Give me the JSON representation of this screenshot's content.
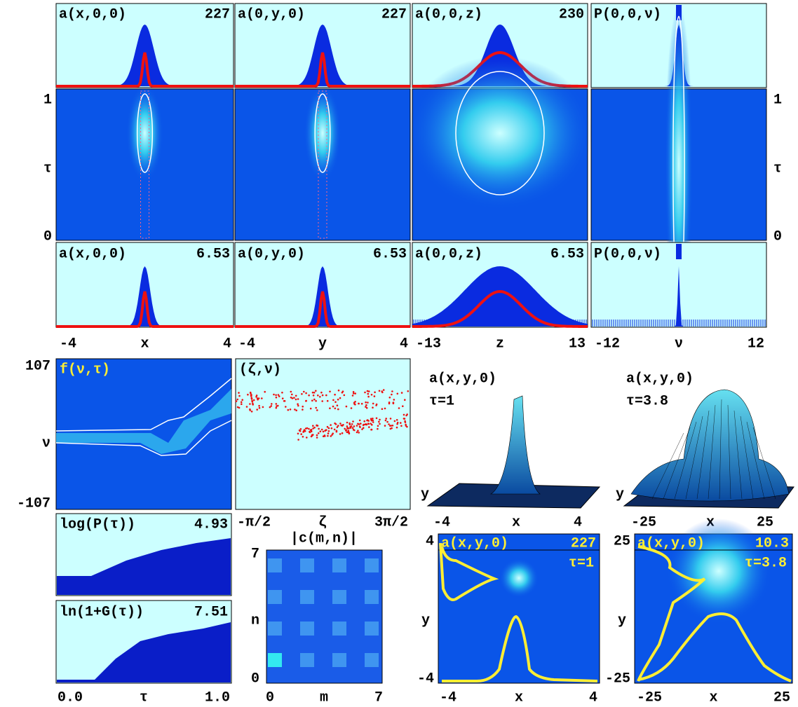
{
  "top_row": [
    {
      "title": "a(x,0,0)",
      "value": "227"
    },
    {
      "title": "a(0,y,0)",
      "value": "227"
    },
    {
      "title": "a(0,0,z)",
      "value": "230"
    },
    {
      "title": "P(0,0,ν)"
    }
  ],
  "heatmap_axis": {
    "top": "1",
    "label": "τ",
    "bottom": "0"
  },
  "bottom_row": [
    {
      "title": "a(x,0,0)",
      "value": "6.53"
    },
    {
      "title": "a(0,y,0)",
      "value": "6.53"
    },
    {
      "title": "a(0,0,z)",
      "value": "6.53"
    },
    {
      "title": "P(0,0,ν)"
    }
  ],
  "x_axes": [
    {
      "min": "-4",
      "label": "x",
      "max": "4"
    },
    {
      "min": "-4",
      "label": "y",
      "max": "4"
    },
    {
      "min": "-13",
      "label": "z",
      "max": "13"
    },
    {
      "min": "-12",
      "label": "ν",
      "max": "12"
    }
  ],
  "f_panel": {
    "title": "f(ν,τ)",
    "ymax": "107",
    "ylabel": "ν",
    "ymin": "-107"
  },
  "zeta_panel": {
    "title": "(ζ,ν)",
    "xmin": "-π/2",
    "xlabel": "ζ",
    "xmax": "3π/2"
  },
  "logp_panel": {
    "title": "log(P(τ))",
    "value": "4.93"
  },
  "lng_panel": {
    "title": "ln(1+G(τ))",
    "value": "7.51"
  },
  "tau_axis": {
    "min": "0.0",
    "label": "τ",
    "max": "1.0"
  },
  "cmn_panel": {
    "title": "|c(m,n)|",
    "ymax": "7",
    "ylabel": "n",
    "ymin": "0",
    "xmin": "0",
    "xlabel": "m",
    "xmax": "7"
  },
  "surfaces": [
    {
      "title": "a(x,y,0)",
      "tau": "τ=1",
      "ylabel": "y",
      "xmin": "-4",
      "xlabel": "x",
      "xmax": "4"
    },
    {
      "title": "a(x,y,0)",
      "tau": "τ=3.8",
      "ylabel": "y",
      "xmin": "-25",
      "xlabel": "x",
      "xmax": "25"
    }
  ],
  "density_panels": [
    {
      "title": "a(x,y,0)",
      "value": "227",
      "tau": "τ=1",
      "ymax": "4",
      "ylabel": "y",
      "ymin": "-4",
      "xmin": "-4",
      "xlabel": "x",
      "xmax": "4"
    },
    {
      "title": "a(x,y,0)",
      "value": "10.3",
      "tau": "τ=3.8",
      "ymax": "25",
      "ylabel": "y",
      "ymin": "-25",
      "xmin": "-25",
      "xlabel": "x",
      "xmax": "25"
    }
  ]
}
